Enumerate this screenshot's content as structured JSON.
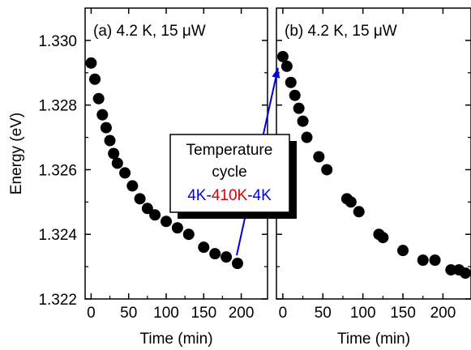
{
  "chart_data": [
    {
      "type": "scatter",
      "panel_label": "(a) 4.2 K, 15 μW",
      "xlabel": "Time (min)",
      "ylabel": "Energy (eV)",
      "xlim": [
        -8,
        235
      ],
      "ylim": [
        1.322,
        1.331
      ],
      "xticks": [
        0,
        50,
        100,
        150,
        200
      ],
      "yticks": [
        1.322,
        1.324,
        1.326,
        1.328,
        1.33
      ],
      "ytick_labels": [
        "1.322",
        "1.324",
        "1.326",
        "1.328",
        "1.330"
      ],
      "marker_color": "#000000",
      "series": [
        {
          "x": [
            0,
            5,
            10,
            15,
            20,
            25,
            30,
            35,
            45,
            55,
            65,
            75,
            85,
            100,
            115,
            130,
            150,
            165,
            180,
            195
          ],
          "y": [
            1.3293,
            1.3288,
            1.3282,
            1.3277,
            1.3273,
            1.3269,
            1.3265,
            1.3262,
            1.3259,
            1.3255,
            1.3251,
            1.3248,
            1.3246,
            1.3244,
            1.3242,
            1.324,
            1.3236,
            1.3234,
            1.3233,
            1.3231
          ]
        }
      ]
    },
    {
      "type": "scatter",
      "panel_label": "(b) 4.2 K, 15 μW",
      "xlabel": "Time (min)",
      "xlim": [
        -8,
        235
      ],
      "ylim": [
        1.322,
        1.331
      ],
      "xticks": [
        0,
        50,
        100,
        150,
        200
      ],
      "marker_color": "#000000",
      "series": [
        {
          "x": [
            0,
            5,
            10,
            15,
            20,
            25,
            30,
            45,
            55,
            80,
            85,
            95,
            120,
            125,
            150,
            175,
            190,
            210,
            220,
            228
          ],
          "y": [
            1.3295,
            1.3292,
            1.3287,
            1.3283,
            1.3279,
            1.3275,
            1.327,
            1.3264,
            1.326,
            1.3251,
            1.325,
            1.3247,
            1.324,
            1.3239,
            1.3235,
            1.3232,
            1.3232,
            1.3229,
            1.3229,
            1.3228
          ]
        }
      ]
    }
  ],
  "annotation": {
    "line1": "Temperature",
    "line2": "cycle",
    "part_4k_a": "4K-",
    "part_410k": "410K",
    "part_4k_b": "-4K",
    "color_blue": "#0000dd",
    "color_red": "#dd0000"
  }
}
